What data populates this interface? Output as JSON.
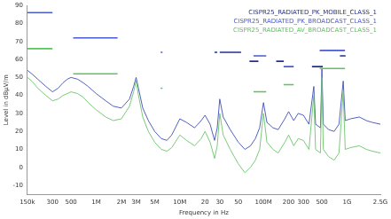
{
  "chart_data": {
    "type": "line",
    "x_label": "Frequency in Hz",
    "y_label": "Level in dBµV/m",
    "log": "x",
    "grid": false,
    "legend": "upper right",
    "xlim": [
      150000,
      2500000000
    ],
    "ylim": [
      -15,
      90
    ],
    "xticks": [
      {
        "value": 150000,
        "label": "150k"
      },
      {
        "value": 300000,
        "label": "300"
      },
      {
        "value": 500000,
        "label": "500"
      },
      {
        "value": 1000000,
        "label": "1M"
      },
      {
        "value": 2000000,
        "label": "2M"
      },
      {
        "value": 3000000,
        "label": "3M"
      },
      {
        "value": 5000000,
        "label": "5M"
      },
      {
        "value": 10000000,
        "label": "10M"
      },
      {
        "value": 20000000,
        "label": "20"
      },
      {
        "value": 30000000,
        "label": "30"
      },
      {
        "value": 50000000,
        "label": "50"
      },
      {
        "value": 100000000,
        "label": "100M"
      },
      {
        "value": 200000000,
        "label": "200"
      },
      {
        "value": 300000000,
        "label": "300"
      },
      {
        "value": 500000000,
        "label": "500"
      },
      {
        "value": 1000000000,
        "label": "1G"
      },
      {
        "value": 2500000000,
        "label": "2.5G"
      }
    ],
    "yticks": [
      -10,
      0,
      10,
      20,
      30,
      40,
      50,
      60,
      70,
      80,
      90
    ],
    "series": [
      {
        "name": "CISPR25_RADIATED_PK_MOBILE_CLASS_1",
        "color": "#23308f",
        "line_style": "solid",
        "x": [
          26000000,
          28000000,
          28000000,
          30000000,
          54000000,
          54000000,
          68000000,
          87000000,
          87000000,
          142000000,
          175000000,
          175000000,
          380000000,
          512000000,
          512000000,
          820000000,
          960000000
        ],
        "values": [
          64,
          64,
          null,
          64,
          64,
          null,
          59,
          59,
          null,
          59,
          59,
          null,
          56,
          56,
          null,
          62,
          62
        ]
      },
      {
        "name": "CISPR25_RADIATED_PK_BROADCAST_CLASS_1",
        "color": "#4a5bd0",
        "line_style": "solid",
        "x": [
          150000,
          300000,
          300000,
          530000,
          1800000,
          1800000,
          5900000,
          6200000,
          6200000,
          76000000,
          108000000,
          108000000,
          174000000,
          230000000,
          230000000,
          470000000,
          944000000
        ],
        "values": [
          86,
          86,
          null,
          72,
          72,
          null,
          64,
          64,
          null,
          62,
          62,
          null,
          56,
          56,
          null,
          65,
          65
        ]
      },
      {
        "name": "CISPR25_RADIATED_AV_BROADCAST_CLASS_1",
        "color": "#5cc45c",
        "line_style": "solid",
        "x": [
          150000,
          300000,
          300000,
          530000,
          1800000,
          1800000,
          5900000,
          6200000,
          6200000,
          76000000,
          108000000,
          108000000,
          174000000,
          230000000,
          230000000,
          470000000,
          944000000
        ],
        "values": [
          66,
          66,
          null,
          52,
          52,
          null,
          44,
          44,
          null,
          42,
          42,
          null,
          46,
          46,
          null,
          55,
          55
        ]
      },
      {
        "color": "#6cc46c",
        "line_style": "solid",
        "x": [
          150000,
          170000,
          200000,
          250000,
          300000,
          350000,
          400000,
          450000,
          500000,
          600000,
          700000,
          800000,
          1000000,
          1300000,
          1600000,
          2000000,
          2500000,
          2800000,
          3000000,
          3200000,
          3600000,
          4200000,
          5000000,
          6000000,
          7000000,
          8000000,
          10000000,
          12000000,
          15000000,
          18000000,
          20000000,
          23000000,
          26000000,
          28000000,
          30000000,
          33000000,
          40000000,
          50000000,
          60000000,
          70000000,
          80000000,
          90000000,
          100000000,
          110000000,
          130000000,
          150000000,
          180000000,
          200000000,
          230000000,
          260000000,
          300000000,
          350000000,
          400000000,
          420000000,
          480000000,
          500000000,
          520000000,
          600000000,
          700000000,
          800000000,
          900000000,
          950000000,
          1100000000,
          1400000000,
          1700000000,
          2000000000,
          2500000000
        ],
        "values": [
          50,
          48,
          44,
          40,
          37,
          38,
          40,
          41,
          42,
          41,
          39,
          36,
          32,
          28,
          26,
          27,
          34,
          42,
          48,
          40,
          28,
          20,
          14,
          10,
          9,
          11,
          18,
          15,
          12,
          16,
          20,
          14,
          5,
          12,
          30,
          18,
          10,
          2,
          -3,
          0,
          4,
          10,
          30,
          14,
          10,
          8,
          14,
          18,
          12,
          16,
          15,
          10,
          40,
          10,
          8,
          50,
          10,
          6,
          4,
          8,
          42,
          10,
          11,
          12,
          10,
          9,
          8
        ]
      },
      {
        "color": "#3f4fb8",
        "line_style": "solid",
        "x": [
          150000,
          170000,
          200000,
          250000,
          300000,
          350000,
          400000,
          450000,
          500000,
          600000,
          700000,
          800000,
          1000000,
          1300000,
          1600000,
          2000000,
          2500000,
          2800000,
          3000000,
          3200000,
          3600000,
          4200000,
          5000000,
          6000000,
          7000000,
          8000000,
          10000000,
          12000000,
          15000000,
          18000000,
          20000000,
          23000000,
          26000000,
          28000000,
          30000000,
          33000000,
          40000000,
          50000000,
          60000000,
          70000000,
          80000000,
          90000000,
          100000000,
          110000000,
          130000000,
          150000000,
          180000000,
          200000000,
          230000000,
          260000000,
          300000000,
          350000000,
          400000000,
          420000000,
          480000000,
          500000000,
          520000000,
          600000000,
          700000000,
          800000000,
          900000000,
          950000000,
          1100000000,
          1400000000,
          1700000000,
          2000000000,
          2500000000
        ],
        "values": [
          54,
          52,
          49,
          45,
          42,
          44,
          47,
          49,
          50,
          49,
          47,
          45,
          41,
          37,
          34,
          33,
          38,
          45,
          50,
          44,
          33,
          26,
          20,
          16,
          15,
          18,
          27,
          25,
          22,
          26,
          29,
          24,
          15,
          22,
          38,
          28,
          21,
          14,
          10,
          12,
          16,
          22,
          36,
          25,
          22,
          21,
          27,
          31,
          26,
          30,
          29,
          24,
          45,
          24,
          22,
          55,
          24,
          21,
          20,
          24,
          48,
          26,
          27,
          28,
          26,
          25,
          24
        ]
      }
    ]
  }
}
